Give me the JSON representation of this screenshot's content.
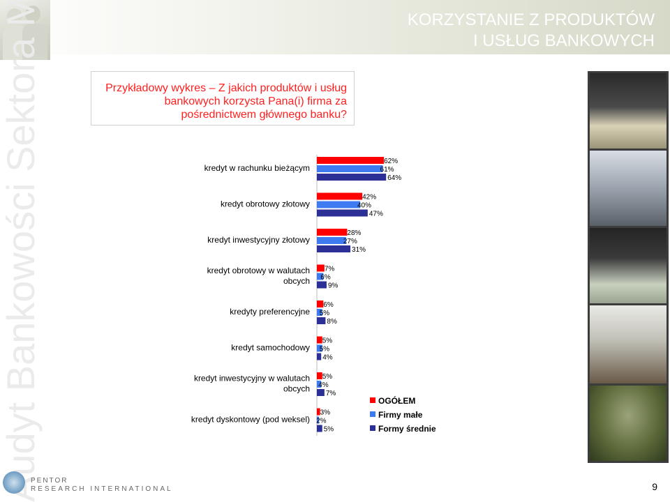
{
  "page": {
    "title_line1": "KORZYSTANIE Z PRODUKTÓW",
    "title_line2": "I USŁUG BANKOWYCH",
    "vertical_brand": "Audyt Bankowości Sektora MSP",
    "question": "Przykładowy wykres – Z jakich produktów i usług bankowych korzysta Pana(i) firma za pośrednictwem głównego banku?",
    "logo_line1": "PENTOR",
    "logo_line2": "RESEARCH INTERNATIONAL",
    "page_number": "9"
  },
  "colors": {
    "red": "#ff0000",
    "blue": "#3f7bf0",
    "navy": "#2b2f96",
    "title_red": "#ff1f1f"
  },
  "chart_data": {
    "type": "bar",
    "orientation": "horizontal",
    "categories": [
      [
        "kredyt w rachunku bieżącym"
      ],
      [
        "kredyt obrotowy złotowy"
      ],
      [
        "kredyt inwestycyjny złotowy"
      ],
      [
        "kredyt obrotowy w walutach",
        "obcych"
      ],
      [
        "kredyty preferencyjne"
      ],
      [
        "kredyt samochodowy"
      ],
      [
        "kredyt inwestycyjny w walutach",
        "obcych"
      ],
      [
        "kredyt dyskontowy (pod weksel)"
      ]
    ],
    "series": [
      {
        "name": "OGÓŁEM",
        "color": "#ff0000",
        "values": [
          62,
          42,
          28,
          7,
          6,
          5,
          5,
          3
        ]
      },
      {
        "name": "Firmy małe",
        "color": "#3f7bf0",
        "values": [
          61,
          40,
          27,
          6,
          5,
          5,
          4,
          2
        ]
      },
      {
        "name": "Formy średnie",
        "color": "#2b2f96",
        "values": [
          64,
          47,
          31,
          9,
          8,
          4,
          7,
          5
        ]
      }
    ],
    "value_suffix": "%",
    "xlim": [
      0,
      100
    ],
    "grid": false,
    "legend_position": "bottom-right"
  }
}
